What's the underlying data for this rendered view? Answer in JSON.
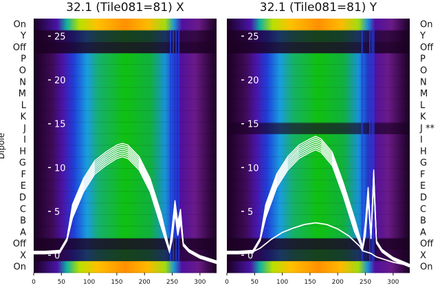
{
  "chart_data": [
    {
      "type": "heatmap",
      "title": "32.1 (Tile081=81) X",
      "ylabel": "Dipole",
      "x_ticks": [
        0,
        50,
        100,
        150,
        200,
        250,
        300
      ],
      "xlim": [
        0,
        330
      ],
      "overlay_ticks": [
        25,
        20,
        15,
        10,
        5,
        0
      ],
      "overlay_ylim": [
        -2,
        27
      ],
      "rows": [
        "On",
        "Y",
        "Off",
        "P",
        "O",
        "N",
        "M",
        "L",
        "K",
        "J",
        "I",
        "H",
        "G",
        "F",
        "E",
        "D",
        "C",
        "B",
        "A",
        "Off",
        "X",
        "On"
      ],
      "colormap": "spectral (purple-blue-green-yellow-orange)",
      "band_edges": [
        47,
        63,
        245,
        266
      ],
      "rfi_channels": [
        247,
        252,
        257,
        262
      ],
      "traces": [
        {
          "name": "",
          "count": 8,
          "x": [
            0,
            20,
            47,
            60,
            70,
            90,
            110,
            130,
            150,
            160,
            170,
            190,
            210,
            230,
            245,
            250,
            255,
            260,
            265,
            270,
            280,
            300,
            330
          ],
          "y": [
            0.3,
            0.3,
            0.4,
            1.8,
            5.0,
            8.0,
            10.0,
            11.0,
            11.8,
            12.0,
            11.8,
            10.5,
            8.0,
            4.0,
            0.5,
            2.5,
            5.5,
            3.0,
            4.5,
            1.2,
            0.5,
            -0.2,
            -0.8
          ]
        }
      ]
    },
    {
      "type": "heatmap",
      "title": "32.1 (Tile081=81) Y",
      "ylabel": "",
      "x_ticks": [
        0,
        50,
        100,
        150,
        200,
        250,
        300
      ],
      "xlim": [
        0,
        330
      ],
      "overlay_ticks": [
        25,
        20,
        15,
        10,
        5,
        0
      ],
      "overlay_ylim": [
        -2,
        27
      ],
      "rows": [
        "On",
        "Y",
        "Off",
        "P",
        "O",
        "N",
        "M",
        "L",
        "K",
        "J **",
        "I",
        "H",
        "G",
        "F",
        "E",
        "D",
        "C",
        "B",
        "A",
        "Off",
        "X",
        "On"
      ],
      "colormap": "spectral (purple-blue-green-yellow-orange)",
      "band_edges": [
        47,
        63,
        245,
        266
      ],
      "rfi_channels": [
        244,
        258,
        262,
        265
      ],
      "flagged_row": "J **",
      "traces": [
        {
          "name": "",
          "count": 8,
          "x": [
            0,
            20,
            47,
            60,
            70,
            90,
            110,
            130,
            150,
            160,
            170,
            190,
            210,
            230,
            245,
            250,
            255,
            260,
            265,
            270,
            280,
            300,
            330
          ],
          "y": [
            0.3,
            0.3,
            0.4,
            1.8,
            5.0,
            8.5,
            10.5,
            11.8,
            12.5,
            12.8,
            12.5,
            11.0,
            7.5,
            3.5,
            0.8,
            3.0,
            7.0,
            2.0,
            9.0,
            1.5,
            0.5,
            -0.4,
            -1.2
          ]
        },
        {
          "name": "",
          "count": 1,
          "x": [
            0,
            47,
            60,
            80,
            100,
            120,
            140,
            160,
            180,
            200,
            220,
            240,
            245,
            260,
            270,
            300,
            330
          ],
          "y": [
            0.3,
            0.4,
            0.8,
            1.8,
            2.6,
            3.1,
            3.5,
            3.7,
            3.5,
            3.0,
            2.2,
            1.0,
            0.5,
            0.2,
            -0.2,
            -0.8,
            -1.2
          ]
        }
      ]
    }
  ]
}
